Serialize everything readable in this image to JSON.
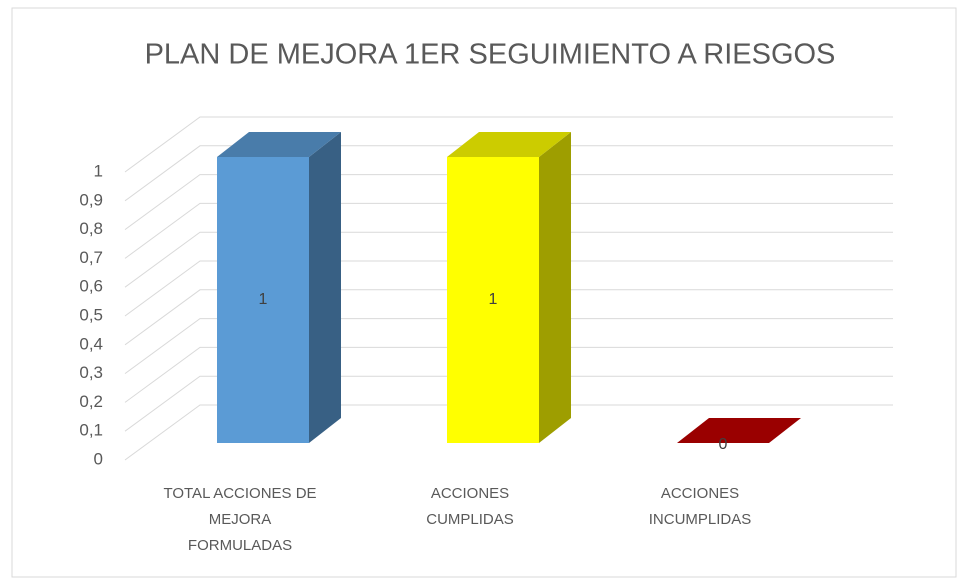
{
  "chart_data": {
    "type": "bar3d",
    "title": "PLAN DE MEJORA 1ER SEGUIMIENTO A RIESGOS",
    "categories": [
      "TOTAL ACCIONES DE MEJORA FORMULADAS",
      "ACCIONES CUMPLIDAS",
      "ACCIONES INCUMPLIDAS"
    ],
    "values": [
      1,
      1,
      0
    ],
    "colors": [
      "#5b9bd5",
      "#ffff00",
      "#c00000"
    ],
    "ylim": [
      0,
      1
    ],
    "yticks": [
      0,
      {
        "value": 0.1,
        "label": "0,1"
      },
      {
        "value": 0.2,
        "label": "0,2"
      },
      {
        "value": 0.3,
        "label": "0,3"
      },
      {
        "value": 0.4,
        "label": "0,4"
      },
      {
        "value": 0.5,
        "label": "0,5"
      },
      {
        "value": 0.6,
        "label": "0,6"
      },
      {
        "value": 0.7,
        "label": "0,7"
      },
      {
        "value": 0.8,
        "label": "0,8"
      },
      {
        "value": 0.9,
        "label": "0,9"
      },
      1
    ],
    "grid": true,
    "data_labels": true
  }
}
